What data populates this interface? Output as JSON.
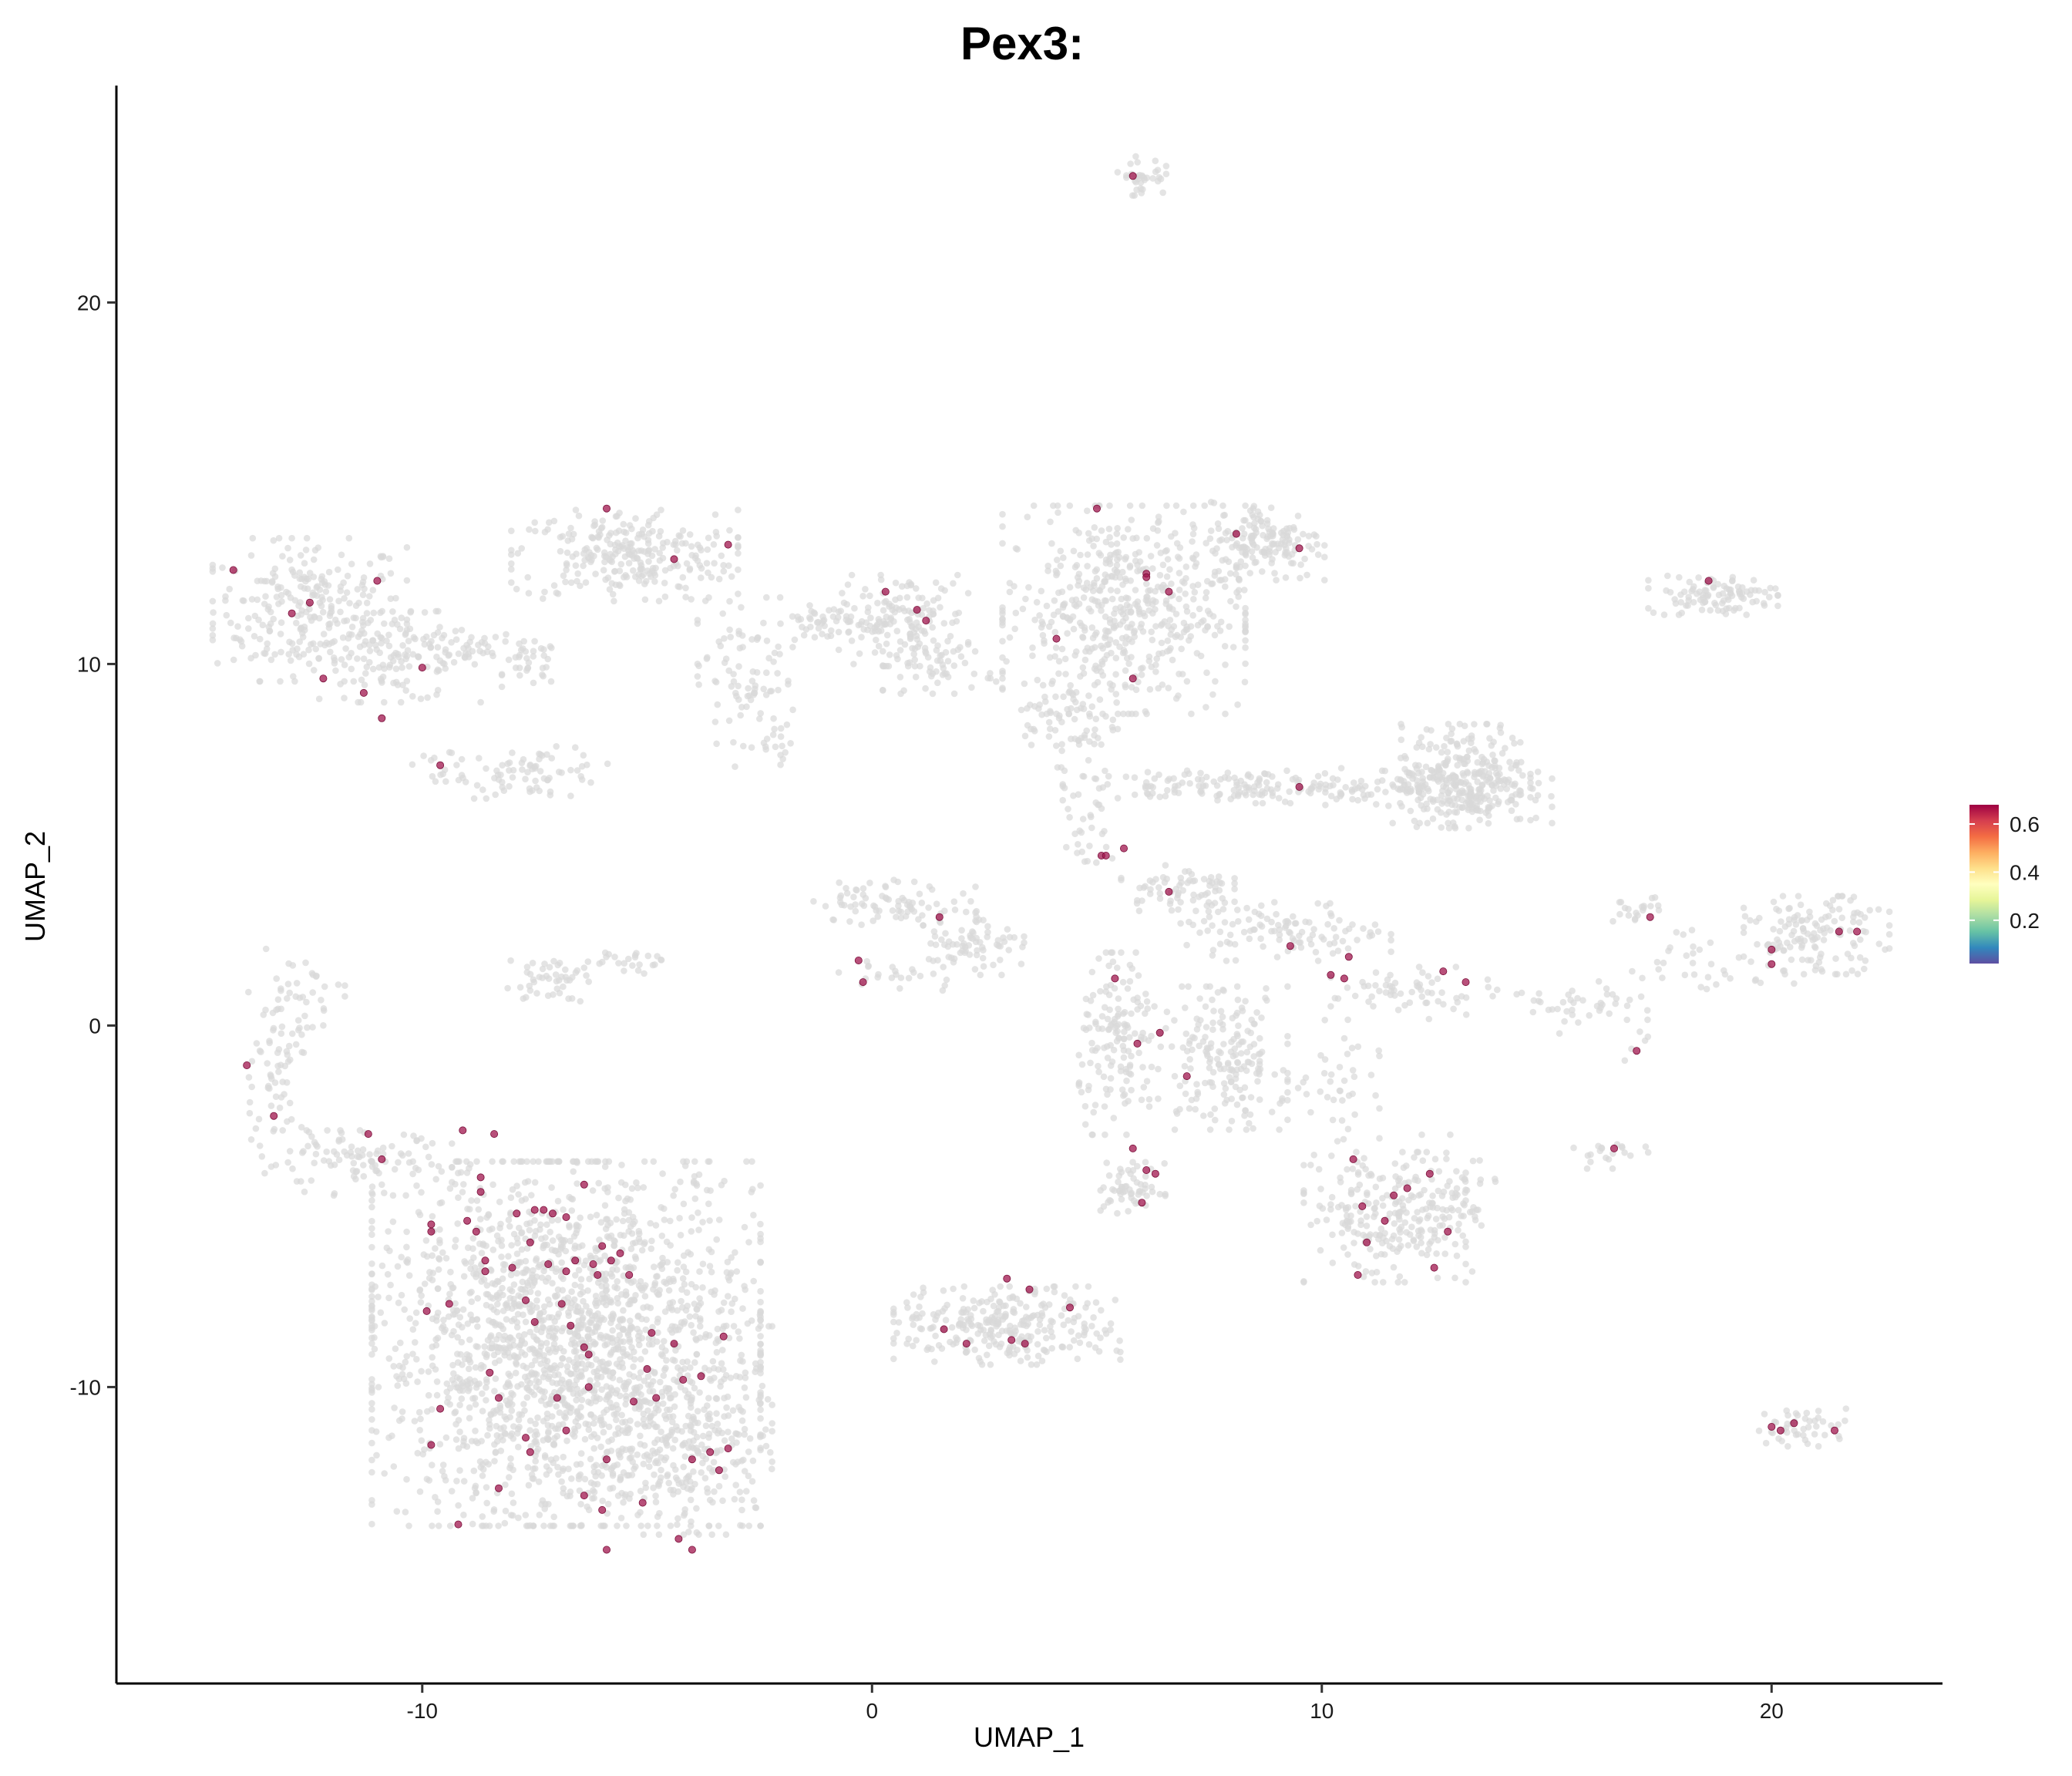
{
  "chart_data": {
    "type": "scatter",
    "title": "Pex3:",
    "xlabel": "UMAP_1",
    "ylabel": "UMAP_2",
    "xlim": [
      -16.8,
      23.8
    ],
    "ylim": [
      -18.2,
      26.0
    ],
    "x_ticks": [
      -10,
      0,
      10,
      20
    ],
    "x_tick_labels": [
      "-10",
      "0",
      "10",
      "20"
    ],
    "y_ticks": [
      -10,
      0,
      10,
      20
    ],
    "y_tick_labels": [
      "-10",
      "0",
      "10",
      "20"
    ],
    "grid": false,
    "legend": {
      "placement": "right",
      "type": "colorbar",
      "range": [
        0.02,
        0.68
      ],
      "ticks": [
        0.2,
        0.4,
        0.6
      ],
      "tick_labels": [
        "0.2",
        "0.4",
        "0.6"
      ],
      "colors": [
        "#5E4FA2",
        "#3288BD",
        "#66C2A5",
        "#ABDDA4",
        "#E6F598",
        "#FFFFBF",
        "#FEE08B",
        "#FDAE61",
        "#F46D43",
        "#D53E4F",
        "#9E0142"
      ]
    },
    "background_color": "#D9D9D9",
    "expressed_color": "#A0154E",
    "background_clusters": [
      {
        "cx": -12.5,
        "cy": 11.5,
        "sx": 1.2,
        "sy": 1.1,
        "n": 260
      },
      {
        "cx": -10.5,
        "cy": 10.2,
        "sx": 1.0,
        "sy": 0.7,
        "n": 120
      },
      {
        "cx": -9.0,
        "cy": 10.4,
        "sx": 0.6,
        "sy": 0.3,
        "n": 30
      },
      {
        "cx": -7.6,
        "cy": 10.0,
        "sx": 0.35,
        "sy": 0.35,
        "n": 35
      },
      {
        "cx": -7.5,
        "cy": 7.0,
        "sx": 0.9,
        "sy": 0.4,
        "n": 70
      },
      {
        "cx": -9.5,
        "cy": 7.2,
        "sx": 0.4,
        "sy": 0.25,
        "n": 15
      },
      {
        "cx": -5.5,
        "cy": 13.0,
        "sx": 1.4,
        "sy": 0.7,
        "n": 260
      },
      {
        "cx": -2.8,
        "cy": 9.5,
        "sx": 0.6,
        "sy": 1.3,
        "n": 90
      },
      {
        "cx": -1.0,
        "cy": 11.2,
        "sx": 0.5,
        "sy": 0.3,
        "n": 30
      },
      {
        "cx": 0.7,
        "cy": 11.2,
        "sx": 0.8,
        "sy": 0.7,
        "n": 140
      },
      {
        "cx": 1.5,
        "cy": 9.9,
        "sx": 0.7,
        "sy": 0.4,
        "n": 50
      },
      {
        "cx": 5.6,
        "cy": 11.5,
        "sx": 1.5,
        "sy": 1.6,
        "n": 540
      },
      {
        "cx": 4.4,
        "cy": 8.4,
        "sx": 0.6,
        "sy": 0.7,
        "n": 70
      },
      {
        "cx": 8.8,
        "cy": 13.4,
        "sx": 0.7,
        "sy": 0.6,
        "n": 150
      },
      {
        "cx": 6.0,
        "cy": 23.5,
        "sx": 0.3,
        "sy": 0.3,
        "n": 35
      },
      {
        "cx": 18.7,
        "cy": 11.9,
        "sx": 0.8,
        "sy": 0.3,
        "n": 100
      },
      {
        "cx": 8.2,
        "cy": 6.6,
        "sx": 2.2,
        "sy": 0.25,
        "n": 170
      },
      {
        "cx": 12.6,
        "cy": 6.5,
        "sx": 1.4,
        "sy": 0.5,
        "n": 120
      },
      {
        "cx": 13.2,
        "cy": 6.9,
        "sx": 0.8,
        "sy": 0.8,
        "n": 260
      },
      {
        "cx": 6.8,
        "cy": 3.8,
        "sx": 0.7,
        "sy": 0.35,
        "n": 70
      },
      {
        "cx": 9.2,
        "cy": 2.6,
        "sx": 1.3,
        "sy": 0.45,
        "n": 110
      },
      {
        "cx": 5.5,
        "cy": -0.5,
        "sx": 0.5,
        "sy": 1.4,
        "n": 150
      },
      {
        "cx": 7.8,
        "cy": -0.9,
        "sx": 0.8,
        "sy": 1.1,
        "n": 190
      },
      {
        "cx": 5.8,
        "cy": -4.5,
        "sx": 0.4,
        "sy": 0.4,
        "n": 60
      },
      {
        "cx": 11.4,
        "cy": -5.3,
        "sx": 1.0,
        "sy": 1.0,
        "n": 210
      },
      {
        "cx": 12.8,
        "cy": -5.0,
        "sx": 0.6,
        "sy": 1.1,
        "n": 70
      },
      {
        "cx": 12.0,
        "cy": 0.9,
        "sx": 1.0,
        "sy": 0.4,
        "n": 60
      },
      {
        "cx": 14.8,
        "cy": 0.5,
        "sx": 0.5,
        "sy": 0.4,
        "n": 20
      },
      {
        "cx": 17.0,
        "cy": 3.2,
        "sx": 0.3,
        "sy": 0.2,
        "n": 20
      },
      {
        "cx": 21.0,
        "cy": 2.5,
        "sx": 0.9,
        "sy": 0.6,
        "n": 140
      },
      {
        "cx": 18.7,
        "cy": 1.8,
        "sx": 1.0,
        "sy": 0.5,
        "n": 35
      },
      {
        "cx": 16.2,
        "cy": 0.7,
        "sx": 0.5,
        "sy": 0.3,
        "n": 20
      },
      {
        "cx": 16.5,
        "cy": -3.6,
        "sx": 0.5,
        "sy": 0.2,
        "n": 20
      },
      {
        "cx": 20.7,
        "cy": -11.1,
        "sx": 0.6,
        "sy": 0.3,
        "n": 45
      },
      {
        "cx": 0.5,
        "cy": 3.4,
        "sx": 1.0,
        "sy": 0.35,
        "n": 80
      },
      {
        "cx": 2.3,
        "cy": 2.3,
        "sx": 0.6,
        "sy": 0.5,
        "n": 70
      },
      {
        "cx": 0.7,
        "cy": 1.4,
        "sx": 0.8,
        "sy": 0.25,
        "n": 25
      },
      {
        "cx": -7.2,
        "cy": 1.3,
        "sx": 0.5,
        "sy": 0.35,
        "n": 45
      },
      {
        "cx": -5.5,
        "cy": 1.8,
        "sx": 0.5,
        "sy": 0.2,
        "n": 25
      },
      {
        "cx": -12.8,
        "cy": 0.5,
        "sx": 0.6,
        "sy": 0.9,
        "n": 50
      },
      {
        "cx": -13.4,
        "cy": -1.7,
        "sx": 0.4,
        "sy": 1.2,
        "n": 50
      },
      {
        "cx": -11.5,
        "cy": -3.8,
        "sx": 1.2,
        "sy": 0.5,
        "n": 100
      },
      {
        "cx": -6.8,
        "cy": -8.8,
        "sx": 2.4,
        "sy": 2.8,
        "n": 1900
      },
      {
        "cx": -4.2,
        "cy": -11.2,
        "sx": 1.1,
        "sy": 1.6,
        "n": 260
      },
      {
        "cx": 3.0,
        "cy": -8.3,
        "sx": 1.4,
        "sy": 0.6,
        "n": 280
      },
      {
        "cx": -0.8,
        "cy": 11.0,
        "sx": 1.2,
        "sy": 0.3,
        "n": 25
      },
      {
        "cx": -2.0,
        "cy": 7.6,
        "sx": 0.2,
        "sy": 0.4,
        "n": 10
      },
      {
        "cx": 4.8,
        "cy": 5.3,
        "sx": 0.3,
        "sy": 0.7,
        "n": 25
      },
      {
        "cx": 10.2,
        "cy": -2.0,
        "sx": 0.6,
        "sy": 1.2,
        "n": 45
      },
      {
        "cx": 17.0,
        "cy": -0.3,
        "sx": 0.2,
        "sy": 0.4,
        "n": 8
      }
    ],
    "expressed_points": [
      [
        5.8,
        23.5
      ],
      [
        -14.2,
        12.6
      ],
      [
        -12.9,
        11.4
      ],
      [
        -12.5,
        11.7
      ],
      [
        -11.0,
        12.3
      ],
      [
        -12.2,
        9.6
      ],
      [
        -11.3,
        9.2
      ],
      [
        -10.9,
        8.5
      ],
      [
        -10.0,
        9.9
      ],
      [
        -9.6,
        7.2
      ],
      [
        -5.9,
        14.3
      ],
      [
        -4.4,
        12.9
      ],
      [
        -3.2,
        13.3
      ],
      [
        0.3,
        12.0
      ],
      [
        1.0,
        11.5
      ],
      [
        1.2,
        11.2
      ],
      [
        5.0,
        14.3
      ],
      [
        6.1,
        12.5
      ],
      [
        6.1,
        12.4
      ],
      [
        6.6,
        12.0
      ],
      [
        4.1,
        10.7
      ],
      [
        5.8,
        9.6
      ],
      [
        8.1,
        13.6
      ],
      [
        9.5,
        13.2
      ],
      [
        18.6,
        12.3
      ],
      [
        9.5,
        6.6
      ],
      [
        5.1,
        4.7
      ],
      [
        5.2,
        4.7
      ],
      [
        5.6,
        4.9
      ],
      [
        6.6,
        3.7
      ],
      [
        1.5,
        3.0
      ],
      [
        -0.3,
        1.8
      ],
      [
        -0.2,
        1.2
      ],
      [
        5.4,
        1.3
      ],
      [
        5.9,
        -0.5
      ],
      [
        6.4,
        -0.2
      ],
      [
        7.0,
        -1.4
      ],
      [
        9.3,
        2.2
      ],
      [
        10.2,
        1.4
      ],
      [
        10.5,
        1.3
      ],
      [
        10.6,
        1.9
      ],
      [
        12.7,
        1.5
      ],
      [
        13.2,
        1.2
      ],
      [
        17.3,
        3.0
      ],
      [
        17.0,
        -0.7
      ],
      [
        16.5,
        -3.4
      ],
      [
        20.0,
        2.1
      ],
      [
        20.0,
        1.7
      ],
      [
        21.5,
        2.6
      ],
      [
        21.9,
        2.6
      ],
      [
        20.0,
        -11.1
      ],
      [
        20.2,
        -11.2
      ],
      [
        20.5,
        -11.0
      ],
      [
        21.4,
        -11.2
      ],
      [
        5.8,
        -3.4
      ],
      [
        6.1,
        -4.0
      ],
      [
        6.3,
        -4.1
      ],
      [
        6.0,
        -4.9
      ],
      [
        10.7,
        -3.7
      ],
      [
        10.9,
        -5.0
      ],
      [
        11.0,
        -6.0
      ],
      [
        11.4,
        -5.4
      ],
      [
        11.6,
        -4.7
      ],
      [
        11.9,
        -4.5
      ],
      [
        12.4,
        -4.1
      ],
      [
        12.5,
        -6.7
      ],
      [
        12.8,
        -5.7
      ],
      [
        10.8,
        -6.9
      ],
      [
        3.0,
        -7.0
      ],
      [
        3.5,
        -7.3
      ],
      [
        4.4,
        -7.8
      ],
      [
        1.6,
        -8.4
      ],
      [
        2.1,
        -8.8
      ],
      [
        3.1,
        -8.7
      ],
      [
        3.4,
        -8.8
      ],
      [
        -13.9,
        -1.1
      ],
      [
        -13.3,
        -2.5
      ],
      [
        -11.2,
        -3.0
      ],
      [
        -10.9,
        -3.7
      ],
      [
        -9.1,
        -2.9
      ],
      [
        -8.7,
        -4.2
      ],
      [
        -8.4,
        -3.0
      ],
      [
        -8.7,
        -4.6
      ],
      [
        -9.8,
        -5.5
      ],
      [
        -9.8,
        -5.7
      ],
      [
        -9.0,
        -5.4
      ],
      [
        -8.8,
        -5.7
      ],
      [
        -7.9,
        -5.2
      ],
      [
        -7.5,
        -5.1
      ],
      [
        -7.3,
        -5.1
      ],
      [
        -7.1,
        -5.2
      ],
      [
        -6.8,
        -5.3
      ],
      [
        -6.4,
        -4.4
      ],
      [
        -7.6,
        -6.0
      ],
      [
        -8.0,
        -6.7
      ],
      [
        -7.2,
        -6.6
      ],
      [
        -8.6,
        -6.5
      ],
      [
        -8.6,
        -6.8
      ],
      [
        -6.8,
        -6.8
      ],
      [
        -6.6,
        -6.5
      ],
      [
        -6.2,
        -6.6
      ],
      [
        -6.0,
        -6.1
      ],
      [
        -5.8,
        -6.5
      ],
      [
        -5.6,
        -6.3
      ],
      [
        -5.4,
        -6.9
      ],
      [
        -6.1,
        -6.9
      ],
      [
        -9.4,
        -7.7
      ],
      [
        -9.9,
        -7.9
      ],
      [
        -7.7,
        -7.6
      ],
      [
        -7.5,
        -8.2
      ],
      [
        -6.7,
        -8.3
      ],
      [
        -6.9,
        -7.7
      ],
      [
        -6.4,
        -8.9
      ],
      [
        -6.3,
        -9.1
      ],
      [
        -4.9,
        -8.5
      ],
      [
        -4.4,
        -8.8
      ],
      [
        -5.0,
        -9.5
      ],
      [
        -3.3,
        -8.6
      ],
      [
        -3.8,
        -9.7
      ],
      [
        -4.2,
        -9.8
      ],
      [
        -4.8,
        -10.3
      ],
      [
        -8.5,
        -9.6
      ],
      [
        -8.3,
        -10.3
      ],
      [
        -7.0,
        -10.3
      ],
      [
        -6.3,
        -10.0
      ],
      [
        -5.3,
        -10.4
      ],
      [
        -9.6,
        -10.6
      ],
      [
        -9.8,
        -11.6
      ],
      [
        -7.7,
        -11.4
      ],
      [
        -7.6,
        -11.8
      ],
      [
        -6.8,
        -11.2
      ],
      [
        -5.9,
        -12.0
      ],
      [
        -4.0,
        -12.0
      ],
      [
        -3.6,
        -11.8
      ],
      [
        -3.2,
        -11.7
      ],
      [
        -3.4,
        -12.3
      ],
      [
        -8.3,
        -12.8
      ],
      [
        -6.4,
        -13.0
      ],
      [
        -6.0,
        -13.4
      ],
      [
        -5.1,
        -13.2
      ],
      [
        -9.2,
        -13.8
      ],
      [
        -4.3,
        -14.2
      ],
      [
        -4.0,
        -14.5
      ],
      [
        -5.9,
        -14.5
      ]
    ]
  }
}
